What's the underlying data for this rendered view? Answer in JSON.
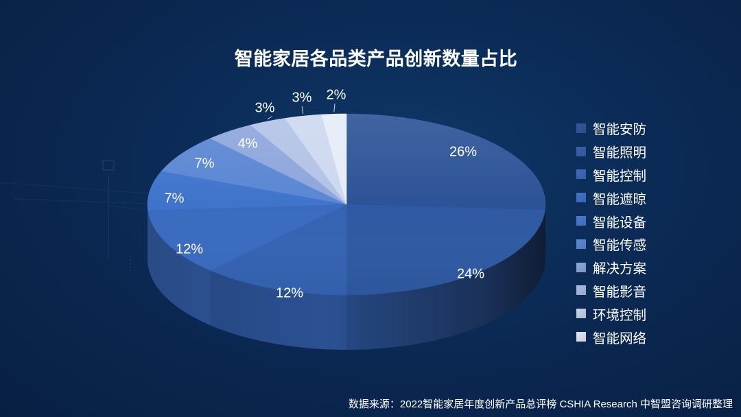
{
  "title": "智能家居各品类产品创新数量占比",
  "source": "数据来源：2022智能家居年度创新产品总评榜 CSHIA Research 中智盟咨询调研整理",
  "chart_data": {
    "type": "pie",
    "style": "3d",
    "title": "智能家居各品类产品创新数量占比",
    "legend_position": "right",
    "categories": [
      "智能安防",
      "智能照明",
      "智能控制",
      "智能遮晾",
      "智能设备",
      "智能传感",
      "解决方案",
      "智能影音",
      "环境控制",
      "智能网络"
    ],
    "values": [
      26,
      24,
      12,
      12,
      7,
      7,
      4,
      3,
      3,
      2
    ],
    "labels": [
      "26%",
      "24%",
      "12%",
      "12%",
      "7%",
      "7%",
      "4%",
      "3%",
      "3%",
      "2%"
    ],
    "colors": [
      "#2c5396",
      "#2f5aa3",
      "#3563b3",
      "#3a6bc0",
      "#3f74cc",
      "#5a86d3",
      "#8ea6dc",
      "#b3c2e6",
      "#cdd8f0",
      "#e6ecf8"
    ]
  },
  "legend": {
    "items": [
      {
        "label": "智能安防",
        "color": "#34589a"
      },
      {
        "label": "智能照明",
        "color": "#3a62ab"
      },
      {
        "label": "智能控制",
        "color": "#3f6bbb"
      },
      {
        "label": "智能遮晾",
        "color": "#4573c6"
      },
      {
        "label": "智能设备",
        "color": "#4a7bd0"
      },
      {
        "label": "智能传感",
        "color": "#5d88d6"
      },
      {
        "label": "解决方案",
        "color": "#8ea7dc"
      },
      {
        "label": "智能影音",
        "color": "#aebde4"
      },
      {
        "label": "环境控制",
        "color": "#c9d4ee"
      },
      {
        "label": "智能网络",
        "color": "#e3e9f7"
      }
    ]
  }
}
